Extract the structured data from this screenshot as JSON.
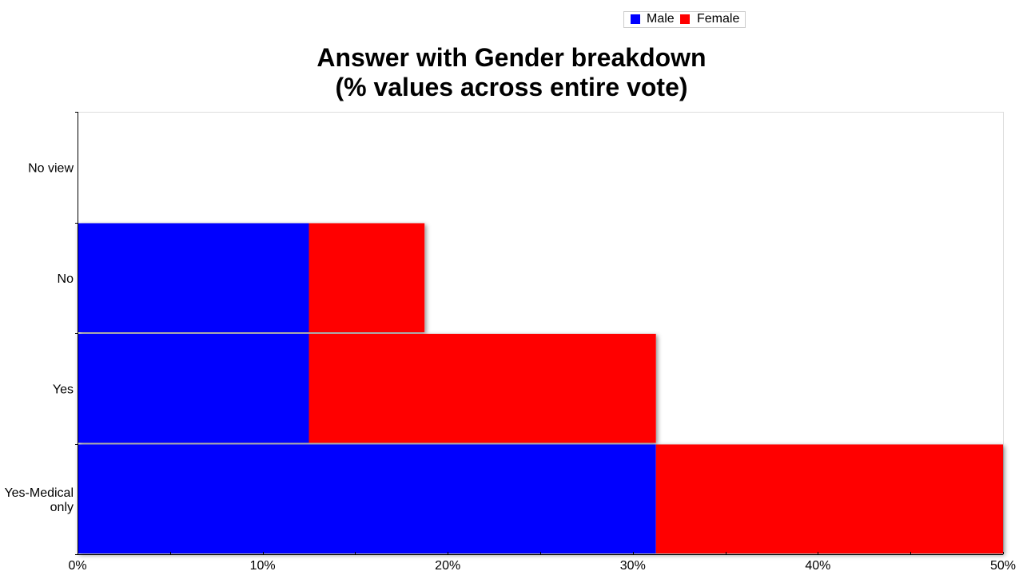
{
  "chart_data": {
    "type": "bar",
    "orientation": "horizontal",
    "stacked": true,
    "title_lines": [
      "Answer with Gender breakdown",
      "(% values across entire vote)"
    ],
    "categories": [
      "No view",
      "No",
      "Yes",
      "Yes-Medical only"
    ],
    "series": [
      {
        "name": "Male",
        "color": "#0000ff",
        "values": [
          0,
          12.5,
          12.5,
          31.25
        ]
      },
      {
        "name": "Female",
        "color": "#ff0000",
        "values": [
          0,
          6.25,
          18.75,
          18.75
        ]
      }
    ],
    "xlim": [
      0,
      50
    ],
    "x_ticks": [
      "0%",
      "10%",
      "20%",
      "30%",
      "40%",
      "50%"
    ],
    "x_tick_values": [
      0,
      10,
      20,
      30,
      40,
      50
    ],
    "xlabel": "",
    "ylabel": "",
    "legend": {
      "placement": "top-right",
      "items": [
        "Male",
        "Female"
      ]
    },
    "grid": false
  }
}
